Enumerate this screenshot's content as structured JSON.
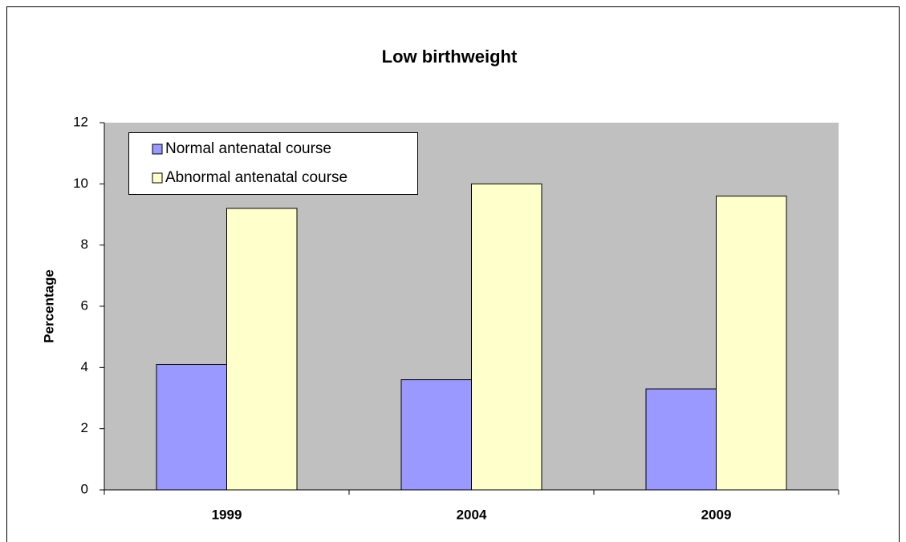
{
  "chart_data": {
    "type": "bar",
    "title": "Low birthweight",
    "y_label": "Percentage",
    "categories": [
      "1999",
      "2004",
      "2009"
    ],
    "series": [
      {
        "name": "Normal antenatal course",
        "color": "#9999ff",
        "values": [
          4.1,
          3.6,
          3.3
        ]
      },
      {
        "name": "Abnormal antenatal course",
        "color": "#ffffcc",
        "values": [
          9.2,
          10.0,
          9.6
        ]
      }
    ],
    "ylim": [
      0,
      12
    ],
    "yticks": [
      0,
      2,
      4,
      6,
      8,
      10,
      12
    ],
    "plot_background": "#c0c0c0",
    "legend": "upper left"
  }
}
